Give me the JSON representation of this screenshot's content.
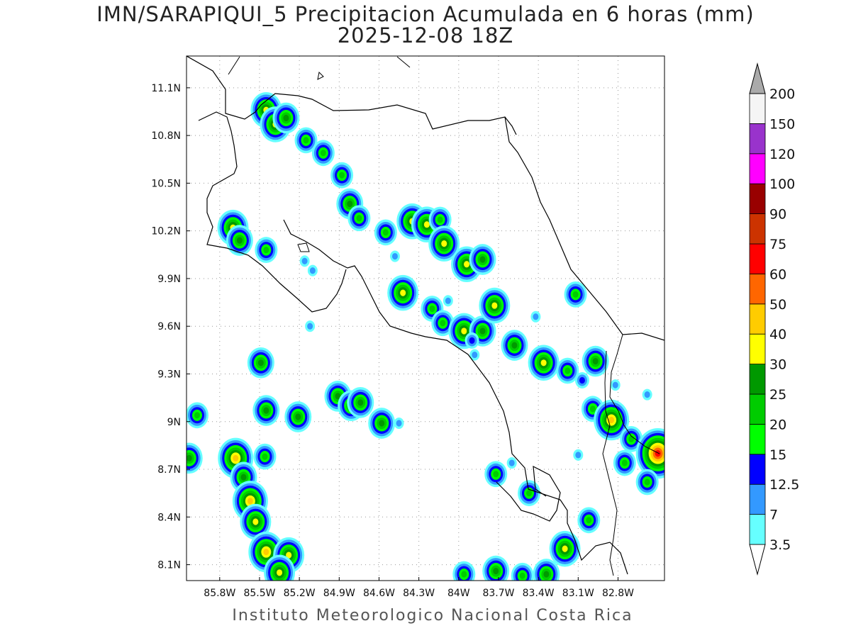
{
  "title": {
    "line1": "IMN/SARAPIQUI_5 Precipitacion Acumulada en 6 horas (mm)",
    "line2": "2025-12-08 18Z"
  },
  "footer": "Instituto Meteorologico Nacional Costa Rica",
  "map": {
    "lon_range": [
      -86.05,
      -82.45
    ],
    "lat_range": [
      8.0,
      11.3
    ],
    "lon_ticks": [
      {
        "v": -85.8,
        "label": "85.8W"
      },
      {
        "v": -85.5,
        "label": "85.5W"
      },
      {
        "v": -85.2,
        "label": "85.2W"
      },
      {
        "v": -84.9,
        "label": "84.9W"
      },
      {
        "v": -84.6,
        "label": "84.6W"
      },
      {
        "v": -84.3,
        "label": "84.3W"
      },
      {
        "v": -84.0,
        "label": "84W"
      },
      {
        "v": -83.7,
        "label": "83.7W"
      },
      {
        "v": -83.4,
        "label": "83.4W"
      },
      {
        "v": -83.1,
        "label": "83.1W"
      },
      {
        "v": -82.8,
        "label": "82.8W"
      }
    ],
    "lat_ticks": [
      {
        "v": 8.1,
        "label": "8.1N"
      },
      {
        "v": 8.4,
        "label": "8.4N"
      },
      {
        "v": 8.7,
        "label": "8.7N"
      },
      {
        "v": 9.0,
        "label": "9N"
      },
      {
        "v": 9.3,
        "label": "9.3N"
      },
      {
        "v": 9.6,
        "label": "9.6N"
      },
      {
        "v": 9.9,
        "label": "9.9N"
      },
      {
        "v": 10.2,
        "label": "10.2N"
      },
      {
        "v": 10.5,
        "label": "10.5N"
      },
      {
        "v": 10.8,
        "label": "10.8N"
      },
      {
        "v": 11.1,
        "label": "11.1N"
      }
    ],
    "grid": true
  },
  "colorbar": {
    "units": "mm",
    "levels": [
      "3.5",
      "7",
      "12.5",
      "15",
      "20",
      "25",
      "30",
      "40",
      "50",
      "60",
      "75",
      "90",
      "100",
      "120",
      "150",
      "200"
    ],
    "colors": [
      "#66ffff",
      "#3399ff",
      "#0000ff",
      "#00ff00",
      "#00cc00",
      "#009900",
      "#ffff00",
      "#ffcc00",
      "#ff6600",
      "#ff0000",
      "#cc3300",
      "#990000",
      "#ff00ff",
      "#9933cc",
      "#f5f5f5",
      "#aaaaaa"
    ]
  },
  "precip_cells": [
    {
      "lon": -85.45,
      "lat": 10.96,
      "cat": 6
    },
    {
      "lon": -85.38,
      "lat": 10.87,
      "cat": 6
    },
    {
      "lon": -85.3,
      "lat": 10.91,
      "cat": 5
    },
    {
      "lon": -85.15,
      "lat": 10.77,
      "cat": 4
    },
    {
      "lon": -85.02,
      "lat": 10.69,
      "cat": 4
    },
    {
      "lon": -84.88,
      "lat": 10.55,
      "cat": 4
    },
    {
      "lon": -84.82,
      "lat": 10.37,
      "cat": 5
    },
    {
      "lon": -84.75,
      "lat": 10.28,
      "cat": 4
    },
    {
      "lon": -84.55,
      "lat": 10.19,
      "cat": 4
    },
    {
      "lon": -84.35,
      "lat": 10.26,
      "cat": 6
    },
    {
      "lon": -84.24,
      "lat": 10.24,
      "cat": 6
    },
    {
      "lon": -84.14,
      "lat": 10.27,
      "cat": 4
    },
    {
      "lon": -84.11,
      "lat": 10.12,
      "cat": 6
    },
    {
      "lon": -83.94,
      "lat": 9.99,
      "cat": 6
    },
    {
      "lon": -83.82,
      "lat": 10.02,
      "cat": 5
    },
    {
      "lon": -85.7,
      "lat": 10.22,
      "cat": 6
    },
    {
      "lon": -85.65,
      "lat": 10.14,
      "cat": 5
    },
    {
      "lon": -85.45,
      "lat": 10.08,
      "cat": 4
    },
    {
      "lon": -84.42,
      "lat": 9.81,
      "cat": 6
    },
    {
      "lon": -84.2,
      "lat": 9.71,
      "cat": 4
    },
    {
      "lon": -84.12,
      "lat": 9.62,
      "cat": 4
    },
    {
      "lon": -83.96,
      "lat": 9.57,
      "cat": 6
    },
    {
      "lon": -83.82,
      "lat": 9.57,
      "cat": 5
    },
    {
      "lon": -83.9,
      "lat": 9.51,
      "cat": 2
    },
    {
      "lon": -83.73,
      "lat": 9.73,
      "cat": 6
    },
    {
      "lon": -83.58,
      "lat": 9.48,
      "cat": 5
    },
    {
      "lon": -83.36,
      "lat": 9.37,
      "cat": 6
    },
    {
      "lon": -83.18,
      "lat": 9.32,
      "cat": 4
    },
    {
      "lon": -83.07,
      "lat": 9.26,
      "cat": 2
    },
    {
      "lon": -82.97,
      "lat": 9.38,
      "cat": 5
    },
    {
      "lon": -83.12,
      "lat": 9.8,
      "cat": 4
    },
    {
      "lon": -82.99,
      "lat": 9.08,
      "cat": 4
    },
    {
      "lon": -82.85,
      "lat": 9.01,
      "cat": 7
    },
    {
      "lon": -82.7,
      "lat": 8.89,
      "cat": 4
    },
    {
      "lon": -82.5,
      "lat": 8.8,
      "cat": 9
    },
    {
      "lon": -82.75,
      "lat": 8.74,
      "cat": 4
    },
    {
      "lon": -85.49,
      "lat": 9.37,
      "cat": 5
    },
    {
      "lon": -85.45,
      "lat": 9.07,
      "cat": 5
    },
    {
      "lon": -85.21,
      "lat": 9.03,
      "cat": 5
    },
    {
      "lon": -84.91,
      "lat": 9.16,
      "cat": 5
    },
    {
      "lon": -84.81,
      "lat": 9.1,
      "cat": 5
    },
    {
      "lon": -84.74,
      "lat": 9.12,
      "cat": 5
    },
    {
      "lon": -84.58,
      "lat": 8.99,
      "cat": 5
    },
    {
      "lon": -85.97,
      "lat": 9.04,
      "cat": 4
    },
    {
      "lon": -85.68,
      "lat": 8.77,
      "cat": 7
    },
    {
      "lon": -85.62,
      "lat": 8.65,
      "cat": 5
    },
    {
      "lon": -85.57,
      "lat": 8.5,
      "cat": 7
    },
    {
      "lon": -85.53,
      "lat": 8.37,
      "cat": 6
    },
    {
      "lon": -85.45,
      "lat": 8.18,
      "cat": 7
    },
    {
      "lon": -85.28,
      "lat": 8.16,
      "cat": 6
    },
    {
      "lon": -85.35,
      "lat": 8.05,
      "cat": 6
    },
    {
      "lon": -85.46,
      "lat": 8.78,
      "cat": 4
    },
    {
      "lon": -86.03,
      "lat": 8.77,
      "cat": 5
    },
    {
      "lon": -83.72,
      "lat": 8.67,
      "cat": 4
    },
    {
      "lon": -83.47,
      "lat": 8.55,
      "cat": 4
    },
    {
      "lon": -83.2,
      "lat": 8.2,
      "cat": 6
    },
    {
      "lon": -83.34,
      "lat": 8.04,
      "cat": 5
    },
    {
      "lon": -83.52,
      "lat": 8.03,
      "cat": 4
    },
    {
      "lon": -83.72,
      "lat": 8.06,
      "cat": 5
    },
    {
      "lon": -83.02,
      "lat": 8.38,
      "cat": 4
    },
    {
      "lon": -82.58,
      "lat": 8.62,
      "cat": 4
    },
    {
      "lon": -83.96,
      "lat": 8.04,
      "cat": 4
    },
    {
      "lon": -85.12,
      "lat": 9.6,
      "cat": 1
    },
    {
      "lon": -84.45,
      "lat": 8.99,
      "cat": 1
    },
    {
      "lon": -83.1,
      "lat": 8.79,
      "cat": 1
    },
    {
      "lon": -83.42,
      "lat": 9.66,
      "cat": 1
    },
    {
      "lon": -84.08,
      "lat": 9.76,
      "cat": 1
    },
    {
      "lon": -83.88,
      "lat": 9.42,
      "cat": 1
    },
    {
      "lon": -85.16,
      "lat": 10.01,
      "cat": 1
    },
    {
      "lon": -85.1,
      "lat": 9.95,
      "cat": 1
    },
    {
      "lon": -82.82,
      "lat": 9.23,
      "cat": 1
    },
    {
      "lon": -82.58,
      "lat": 9.17,
      "cat": 1
    },
    {
      "lon": -83.6,
      "lat": 8.74,
      "cat": 1
    },
    {
      "lon": -84.48,
      "lat": 10.04,
      "cat": 1
    }
  ]
}
